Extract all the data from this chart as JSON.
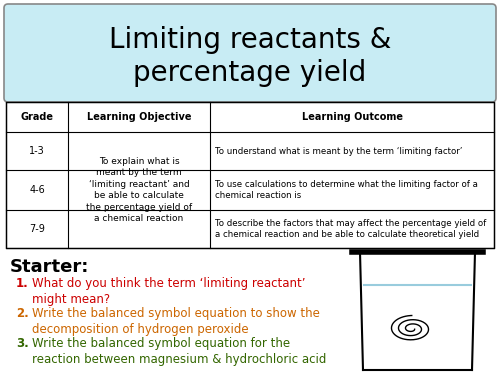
{
  "title_line1": "Limiting reactants &",
  "title_line2": "percentage yield",
  "title_bg": "#c8ecf4",
  "title_border": "#888888",
  "table_headers": [
    "Grade",
    "Learning Objective",
    "Learning Outcome"
  ],
  "table_grades": [
    "1-3",
    "4-6",
    "7-9"
  ],
  "table_objective_lines": [
    "To explain what is",
    "meant by the term",
    "‘limiting reactant’ and",
    "be able to calculate",
    "the percentage yield of",
    "a chemical reaction"
  ],
  "table_outcomes": [
    "To understand what is meant by the term ‘limiting factor’",
    "To use calculations to determine what the limiting factor of a\nchemical reaction is",
    "To describe the factors that may affect the percentage yield of\na chemical reaction and be able to calculate theoretical yield"
  ],
  "starter_label": "Starter:",
  "items": [
    {
      "number": "1.",
      "text": "What do you think the term ‘limiting reactant’\nmight mean?",
      "color": "#cc0000"
    },
    {
      "number": "2.",
      "text": "Write the balanced symbol equation to show the\ndecomposition of hydrogen peroxide",
      "color": "#cc6600"
    },
    {
      "number": "3.",
      "text": "Write the balanced symbol equation for the\nreaction between magnesium & hydrochloric acid",
      "color": "#336600"
    }
  ],
  "bg_color": "#ffffff"
}
